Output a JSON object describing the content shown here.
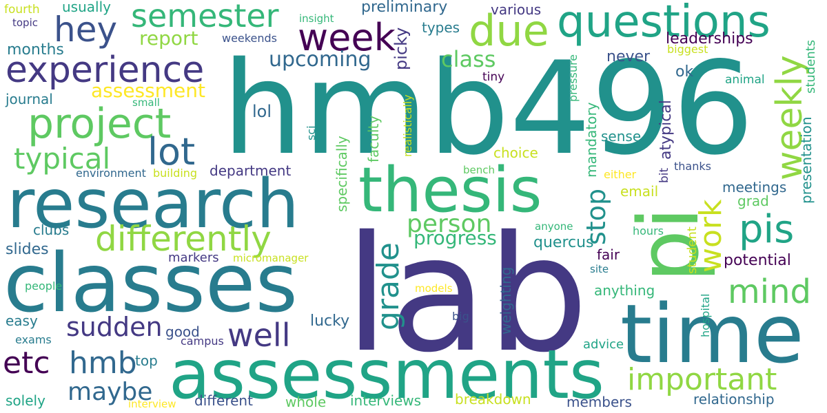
{
  "palette": {
    "dark_purple": "#440154",
    "indigo": "#443983",
    "slate_blue": "#3b528b",
    "steel_blue": "#31688e",
    "teal_blue": "#287c8e",
    "teal": "#21918c",
    "green_teal": "#20a486",
    "green": "#35b779",
    "light_green": "#5ec962",
    "lime": "#90d743",
    "yellow_green": "#c8e020",
    "yellow": "#fde725"
  },
  "words": [
    {
      "text": "hmb496",
      "color": "#21918c"
    },
    {
      "text": "lab",
      "color": "#443983"
    },
    {
      "text": "classes",
      "color": "#287c8e"
    },
    {
      "text": "research",
      "color": "#287c8e"
    },
    {
      "text": "assessments",
      "color": "#20a486"
    },
    {
      "text": "time",
      "color": "#287c8e"
    },
    {
      "text": "thesis",
      "color": "#35b779"
    },
    {
      "text": "pi",
      "color": "#5ec962"
    },
    {
      "text": "questions",
      "color": "#20a486"
    },
    {
      "text": "experience",
      "color": "#443983"
    },
    {
      "text": "project",
      "color": "#5ec962"
    },
    {
      "text": "week",
      "color": "#440154"
    },
    {
      "text": "semester",
      "color": "#35b779"
    },
    {
      "text": "due",
      "color": "#90d743"
    },
    {
      "text": "hey",
      "color": "#3b528b"
    },
    {
      "text": "differently",
      "color": "#90d743"
    },
    {
      "text": "lot",
      "color": "#31688e"
    },
    {
      "text": "weekly",
      "color": "#90d743"
    },
    {
      "text": "work",
      "color": "#c8e020"
    },
    {
      "text": "pis",
      "color": "#20a486"
    },
    {
      "text": "important",
      "color": "#90d743"
    },
    {
      "text": "well",
      "color": "#443983"
    },
    {
      "text": "etc",
      "color": "#440154"
    },
    {
      "text": "hmb",
      "color": "#31688e"
    },
    {
      "text": "mind",
      "color": "#5ec962"
    },
    {
      "text": "typical",
      "color": "#5ec962"
    },
    {
      "text": "grade",
      "color": "#21918c"
    },
    {
      "text": "person",
      "color": "#5ec962"
    },
    {
      "text": "sudden",
      "color": "#443983"
    },
    {
      "text": "maybe",
      "color": "#31688e"
    },
    {
      "text": "stop",
      "color": "#21918c"
    },
    {
      "text": "progress",
      "color": "#35b779"
    },
    {
      "text": "upcoming",
      "color": "#31688e"
    },
    {
      "text": "report",
      "color": "#90d743"
    },
    {
      "text": "assessment",
      "color": "#fde725"
    },
    {
      "text": "class",
      "color": "#5ec962"
    },
    {
      "text": "picky",
      "color": "#443983"
    },
    {
      "text": "preliminary",
      "color": "#31688e"
    },
    {
      "text": "usually",
      "color": "#20a486"
    },
    {
      "text": "fourth",
      "color": "#c8e020"
    },
    {
      "text": "topic",
      "color": "#443983"
    },
    {
      "text": "insight",
      "color": "#35b779"
    },
    {
      "text": "various",
      "color": "#443983"
    },
    {
      "text": "types",
      "color": "#287c8e"
    },
    {
      "text": "weekends",
      "color": "#3b528b"
    },
    {
      "text": "months",
      "color": "#287c8e"
    },
    {
      "text": "never",
      "color": "#3b528b"
    },
    {
      "text": "leaderships",
      "color": "#440154"
    },
    {
      "text": "biggest",
      "color": "#c8e020"
    },
    {
      "text": "students",
      "color": "#35b779"
    },
    {
      "text": "presentation",
      "color": "#21918c"
    },
    {
      "text": "journal",
      "color": "#287c8e"
    },
    {
      "text": "small",
      "color": "#35b779"
    },
    {
      "text": "lol",
      "color": "#31688e"
    },
    {
      "text": "tiny",
      "color": "#440154"
    },
    {
      "text": "ok",
      "color": "#31688e"
    },
    {
      "text": "animal",
      "color": "#20a486"
    },
    {
      "text": "pressure",
      "color": "#35b779"
    },
    {
      "text": "realistically",
      "color": "#c8e020"
    },
    {
      "text": "faculty",
      "color": "#5ec962"
    },
    {
      "text": "sci",
      "color": "#21918c"
    },
    {
      "text": "choice",
      "color": "#c8e020"
    },
    {
      "text": "sense",
      "color": "#21918c"
    },
    {
      "text": "mandatory",
      "color": "#35b779"
    },
    {
      "text": "atypical",
      "color": "#443983"
    },
    {
      "text": "bit",
      "color": "#443983"
    },
    {
      "text": "thanks",
      "color": "#3b528b"
    },
    {
      "text": "environment",
      "color": "#31688e"
    },
    {
      "text": "building",
      "color": "#c8e020"
    },
    {
      "text": "department",
      "color": "#443983"
    },
    {
      "text": "bench",
      "color": "#5ec962"
    },
    {
      "text": "either",
      "color": "#fde725"
    },
    {
      "text": "email",
      "color": "#c8e020"
    },
    {
      "text": "meetings",
      "color": "#31688e"
    },
    {
      "text": "grad",
      "color": "#5ec962"
    },
    {
      "text": "specifically",
      "color": "#5ec962"
    },
    {
      "text": "clubs",
      "color": "#287c8e"
    },
    {
      "text": "slides",
      "color": "#31688e"
    },
    {
      "text": "markers",
      "color": "#443983"
    },
    {
      "text": "micromanager",
      "color": "#c8e020"
    },
    {
      "text": "quercus",
      "color": "#21918c"
    },
    {
      "text": "anyone",
      "color": "#35b779"
    },
    {
      "text": "fair",
      "color": "#440154"
    },
    {
      "text": "hours",
      "color": "#35b779"
    },
    {
      "text": "student",
      "color": "#c8e020"
    },
    {
      "text": "potential",
      "color": "#440154"
    },
    {
      "text": "site",
      "color": "#287c8e"
    },
    {
      "text": "anything",
      "color": "#35b779"
    },
    {
      "text": "people",
      "color": "#35b779"
    },
    {
      "text": "models",
      "color": "#fde725"
    },
    {
      "text": "hospital",
      "color": "#20a486"
    },
    {
      "text": "weighting",
      "color": "#31688e"
    },
    {
      "text": "easy",
      "color": "#287c8e"
    },
    {
      "text": "lucky",
      "color": "#31688e"
    },
    {
      "text": "good",
      "color": "#3b528b"
    },
    {
      "text": "big",
      "color": "#3b528b"
    },
    {
      "text": "campus",
      "color": "#443983"
    },
    {
      "text": "exams",
      "color": "#287c8e"
    },
    {
      "text": "top",
      "color": "#287c8e"
    },
    {
      "text": "advice",
      "color": "#20a486"
    },
    {
      "text": "solely",
      "color": "#20a486"
    },
    {
      "text": "interview",
      "color": "#fde725"
    },
    {
      "text": "different",
      "color": "#3b528b"
    },
    {
      "text": "whole",
      "color": "#5ec962"
    },
    {
      "text": "interviews",
      "color": "#35b779"
    },
    {
      "text": "breakdown",
      "color": "#c8e020"
    },
    {
      "text": "members",
      "color": "#3b528b"
    },
    {
      "text": "relationship",
      "color": "#31688e"
    }
  ]
}
